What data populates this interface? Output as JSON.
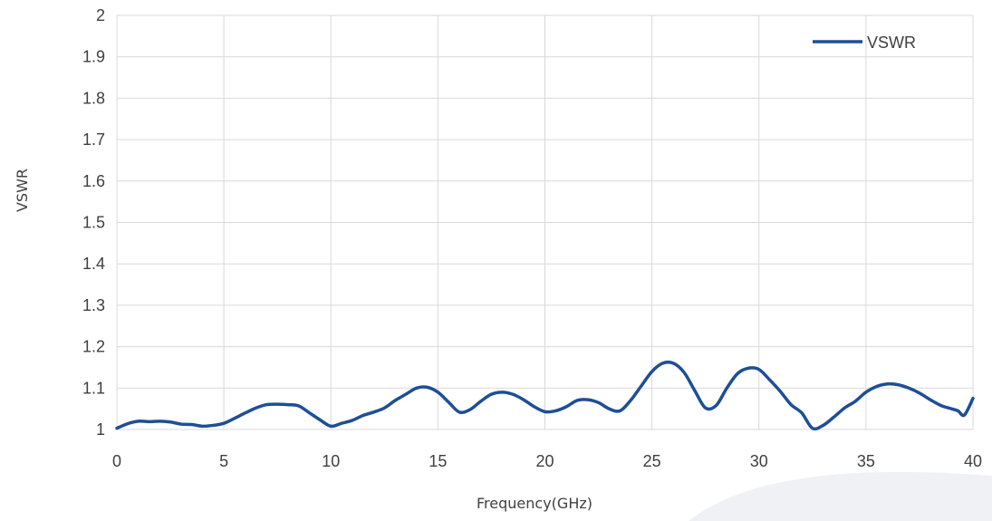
{
  "chart_data": {
    "type": "line",
    "title": "",
    "xlabel": "Frequency(GHz)",
    "ylabel": "VSWR",
    "xlim": [
      0,
      40
    ],
    "ylim": [
      1,
      2
    ],
    "xticks": [
      "0",
      "5",
      "10",
      "15",
      "20",
      "25",
      "30",
      "35",
      "40"
    ],
    "yticks": [
      "1",
      "1.1",
      "1.2",
      "1.3",
      "1.4",
      "1.5",
      "1.6",
      "1.7",
      "1.8",
      "1.9",
      "2"
    ],
    "grid": true,
    "legend_position": "top-right",
    "series": [
      {
        "name": "VSWR",
        "color": "#1F4E96",
        "x": [
          0,
          0.5,
          1,
          1.5,
          2,
          2.5,
          3,
          3.5,
          4,
          4.5,
          5,
          5.5,
          6,
          6.5,
          7,
          7.5,
          8,
          8.5,
          9,
          9.5,
          10,
          10.5,
          11,
          11.5,
          12,
          12.5,
          13,
          13.5,
          14,
          14.5,
          15,
          15.5,
          16,
          16.5,
          17,
          17.5,
          18,
          18.5,
          19,
          19.5,
          20,
          20.5,
          21,
          21.5,
          22,
          22.5,
          23,
          23.5,
          24,
          24.5,
          25,
          25.5,
          26,
          26.5,
          27,
          27.5,
          28,
          28.5,
          29,
          29.5,
          30,
          30.5,
          31,
          31.5,
          32,
          32.5,
          33,
          33.5,
          34,
          34.5,
          35,
          35.5,
          36,
          36.5,
          37,
          37.5,
          38,
          38.5,
          39,
          39.3,
          39.6,
          40
        ],
        "y": [
          1.003,
          1.014,
          1.02,
          1.019,
          1.02,
          1.018,
          1.013,
          1.012,
          1.008,
          1.01,
          1.015,
          1.027,
          1.04,
          1.052,
          1.06,
          1.061,
          1.06,
          1.057,
          1.04,
          1.023,
          1.008,
          1.015,
          1.022,
          1.034,
          1.042,
          1.052,
          1.07,
          1.085,
          1.1,
          1.102,
          1.09,
          1.066,
          1.042,
          1.048,
          1.068,
          1.085,
          1.09,
          1.085,
          1.072,
          1.055,
          1.043,
          1.045,
          1.055,
          1.07,
          1.072,
          1.065,
          1.05,
          1.045,
          1.07,
          1.105,
          1.14,
          1.16,
          1.16,
          1.138,
          1.094,
          1.052,
          1.058,
          1.1,
          1.135,
          1.148,
          1.145,
          1.12,
          1.092,
          1.06,
          1.04,
          1.003,
          1.01,
          1.03,
          1.052,
          1.068,
          1.09,
          1.104,
          1.11,
          1.108,
          1.1,
          1.088,
          1.072,
          1.058,
          1.05,
          1.045,
          1.035,
          1.075
        ]
      }
    ]
  }
}
